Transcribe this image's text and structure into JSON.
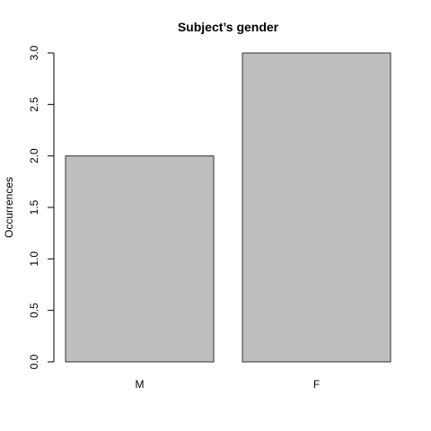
{
  "chart_data": {
    "type": "bar",
    "title": "Subject’s gender",
    "xlabel": "",
    "ylabel": "Occurrences",
    "categories": [
      "M",
      "F"
    ],
    "values": [
      2,
      3
    ],
    "ylim": [
      0,
      3
    ],
    "yticks": [
      "0.0",
      "0.5",
      "1.0",
      "1.5",
      "2.0",
      "2.5",
      "3.0"
    ],
    "grid": false,
    "legend": "none",
    "colors": {
      "bar_fill": "#bebebe",
      "bar_stroke": "#333333",
      "axis": "#000000"
    }
  }
}
